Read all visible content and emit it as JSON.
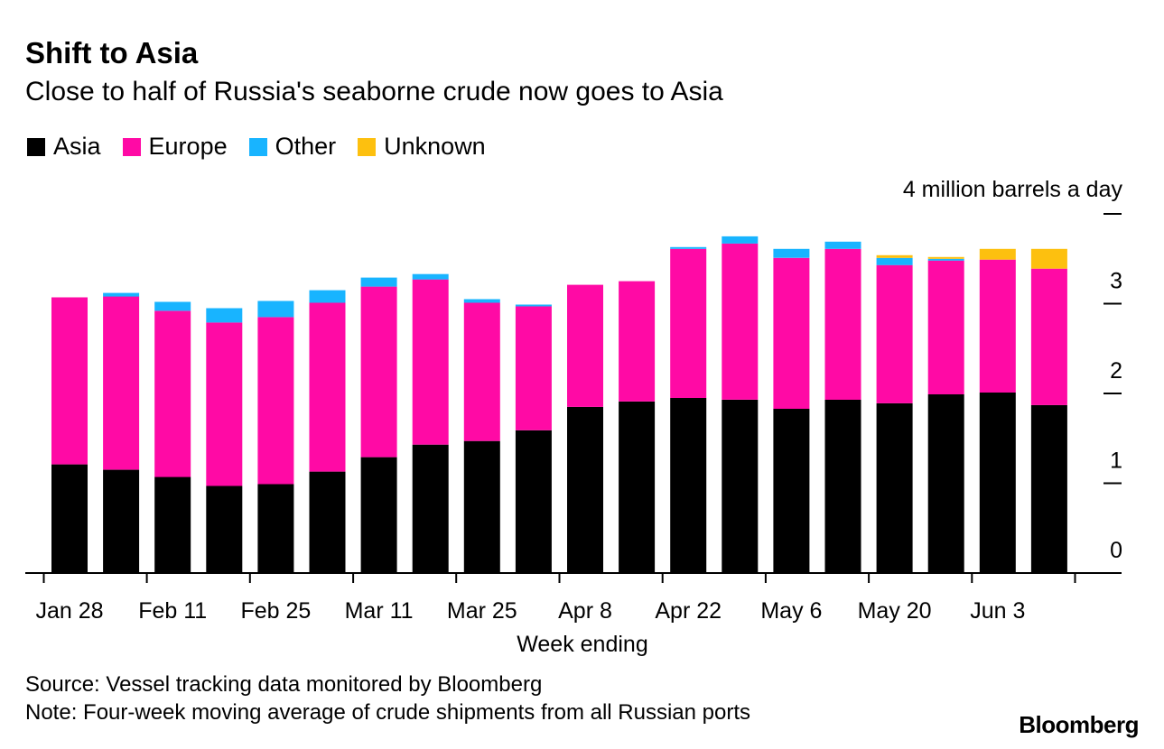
{
  "chart_data": {
    "type": "bar",
    "stacked": true,
    "title": "Shift to Asia",
    "subtitle": "Close to half of Russia's seaborne crude now goes to Asia",
    "xlabel": "Week ending",
    "ylabel": "4 million barrels a day",
    "ylim": [
      0,
      4
    ],
    "y_ticks": [
      {
        "value": 0,
        "label": "0"
      },
      {
        "value": 1,
        "label": "1"
      },
      {
        "value": 2,
        "label": "2"
      },
      {
        "value": 3,
        "label": "3"
      },
      {
        "value": 4,
        "label": ""
      }
    ],
    "x_tick_labels": [
      {
        "index": 0,
        "label": "Jan 28"
      },
      {
        "index": 2,
        "label": "Feb 11"
      },
      {
        "index": 4,
        "label": "Feb 25"
      },
      {
        "index": 6,
        "label": "Mar 11"
      },
      {
        "index": 8,
        "label": "Mar 25"
      },
      {
        "index": 10,
        "label": "Apr 8"
      },
      {
        "index": 12,
        "label": "Apr 22"
      },
      {
        "index": 14,
        "label": "May 6"
      },
      {
        "index": 16,
        "label": "May 20"
      },
      {
        "index": 18,
        "label": "Jun 3"
      }
    ],
    "legend_position": "top-left",
    "series": [
      {
        "name": "Asia",
        "color": "#000000",
        "values": [
          1.21,
          1.15,
          1.07,
          0.97,
          0.99,
          1.13,
          1.29,
          1.43,
          1.47,
          1.59,
          1.85,
          1.91,
          1.95,
          1.93,
          1.83,
          1.93,
          1.89,
          1.99,
          2.01,
          1.87
        ]
      },
      {
        "name": "Europe",
        "color": "#ff0aa5",
        "values": [
          1.86,
          1.93,
          1.85,
          1.82,
          1.86,
          1.88,
          1.9,
          1.84,
          1.54,
          1.38,
          1.36,
          1.34,
          1.66,
          1.74,
          1.68,
          1.68,
          1.54,
          1.49,
          1.48,
          1.52
        ]
      },
      {
        "name": "Other",
        "color": "#18b4ff",
        "values": [
          0.0,
          0.04,
          0.1,
          0.16,
          0.18,
          0.14,
          0.1,
          0.06,
          0.04,
          0.02,
          0.0,
          0.0,
          0.02,
          0.08,
          0.1,
          0.08,
          0.08,
          0.02,
          0.0,
          0.0
        ]
      },
      {
        "name": "Unknown",
        "color": "#fdc00f",
        "values": [
          0.0,
          0.0,
          0.0,
          0.0,
          0.0,
          0.0,
          0.0,
          0.0,
          0.0,
          0.0,
          0.0,
          0.0,
          0.0,
          0.0,
          0.0,
          0.0,
          0.03,
          0.02,
          0.12,
          0.22
        ]
      }
    ]
  },
  "footer": {
    "source": "Source: Vessel tracking data monitored by Bloomberg",
    "note": "Note: Four-week moving average of crude shipments from all Russian ports",
    "brand": "Bloomberg"
  }
}
